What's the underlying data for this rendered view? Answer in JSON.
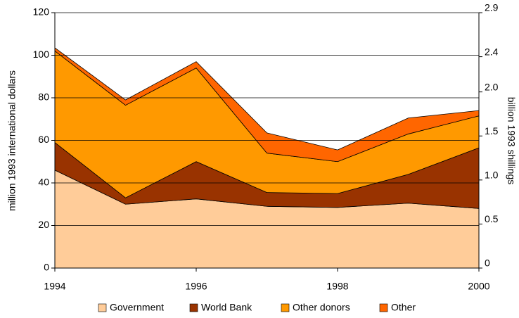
{
  "chart_data": {
    "type": "stacked_area",
    "ylabel": "million 1993 international dollars",
    "y2label": "billion 1993 shillings",
    "x": [
      1994,
      1995,
      1996,
      1997,
      1998,
      1999,
      2000
    ],
    "xlim": [
      1994,
      2000
    ],
    "xticks": [
      1994,
      1996,
      1998,
      2000
    ],
    "ylim": [
      0,
      120
    ],
    "yticks": [
      0,
      20,
      40,
      60,
      80,
      100,
      120
    ],
    "y2lim": [
      0,
      2.9
    ],
    "y2ticks": [
      0,
      0.5,
      {
        "value": 1,
        "label": "1.0"
      },
      1.5,
      {
        "value": 2,
        "label": "2.0"
      },
      2.4,
      2.9
    ],
    "grid": true,
    "legend": "bottom",
    "series": [
      {
        "name": "Government",
        "color": "#ffcc99",
        "values": [
          46,
          30,
          32.5,
          29,
          28.5,
          30.5,
          28
        ]
      },
      {
        "name": "World Bank",
        "color": "#993300",
        "values": [
          13,
          3,
          17.5,
          6.5,
          6.5,
          13.5,
          28.5
        ]
      },
      {
        "name": "Other donors",
        "color": "#ff9900",
        "values": [
          43,
          43.5,
          44,
          18.5,
          15,
          19,
          15
        ]
      },
      {
        "name": "Other",
        "color": "#ff6600",
        "values": [
          1.5,
          2.5,
          3,
          9.5,
          5.5,
          7.5,
          2.5
        ]
      }
    ]
  }
}
